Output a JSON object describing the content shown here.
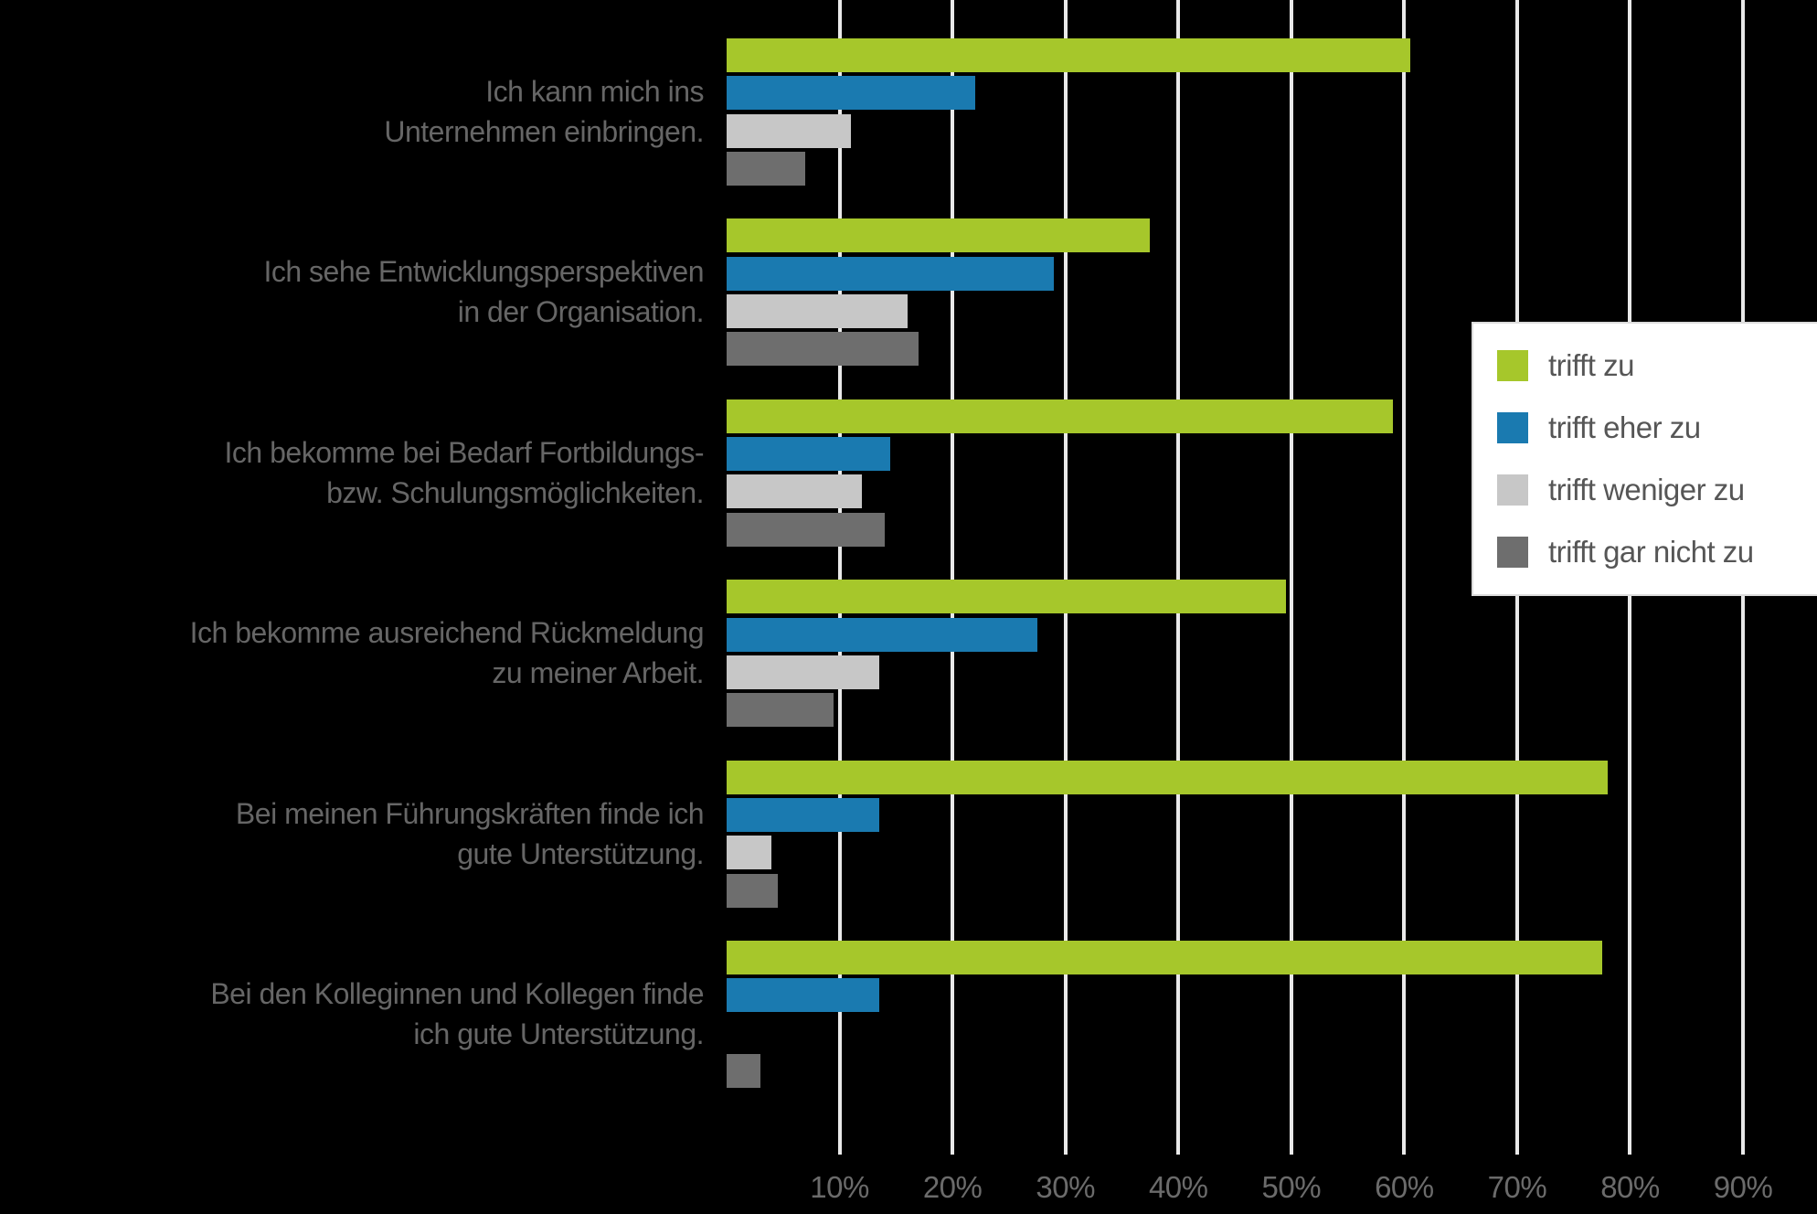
{
  "colors": {
    "background": "#000000",
    "gridline": "#e9e9e9",
    "row_label_text": "#666666",
    "tick_label_text": "#6b6b6b",
    "legend_text": "#565656",
    "legend_background": "#ffffff"
  },
  "chart_data": {
    "type": "bar",
    "orientation": "horizontal",
    "title": "",
    "xlabel": "",
    "ylabel": "",
    "grid": true,
    "legend_position": "right-overlay",
    "xlim": [
      0,
      96.5
    ],
    "x_tick_labels": [
      "10%",
      "20%",
      "30%",
      "40%",
      "50%",
      "60%",
      "70%",
      "80%",
      "90%"
    ],
    "x_tick_values": [
      10,
      20,
      30,
      40,
      50,
      60,
      70,
      80,
      90
    ],
    "categories": [
      [
        "Ich kann mich ins",
        "Unternehmen einbringen."
      ],
      [
        "Ich sehe Entwicklungsperspektiven",
        "in der Organisation."
      ],
      [
        "Ich bekomme bei Bedarf Fortbildungs-",
        "bzw. Schulungsmöglichkeiten."
      ],
      [
        "Ich bekomme ausreichend Rückmeldung",
        "zu meiner Arbeit."
      ],
      [
        "Bei meinen Führungskräften finde ich",
        "gute Unterstützung."
      ],
      [
        "Bei den Kolleginnen und Kollegen finde",
        "ich gute Unterstützung."
      ]
    ],
    "series": [
      {
        "name": "trifft zu",
        "color": "#a6c72b",
        "values": [
          60.5,
          37.5,
          59,
          49.5,
          78,
          77.5
        ]
      },
      {
        "name": "trifft eher zu",
        "color": "#1a7ab0",
        "values": [
          22,
          29,
          14.5,
          27.5,
          13.5,
          13.5
        ]
      },
      {
        "name": "trifft weniger zu",
        "color": "#c7c7c7",
        "values": [
          11,
          16,
          12,
          13.5,
          4,
          0
        ]
      },
      {
        "name": "trifft gar nicht zu",
        "color": "#6e6e6e",
        "values": [
          7,
          17,
          14,
          9.5,
          4.5,
          3
        ]
      }
    ]
  }
}
